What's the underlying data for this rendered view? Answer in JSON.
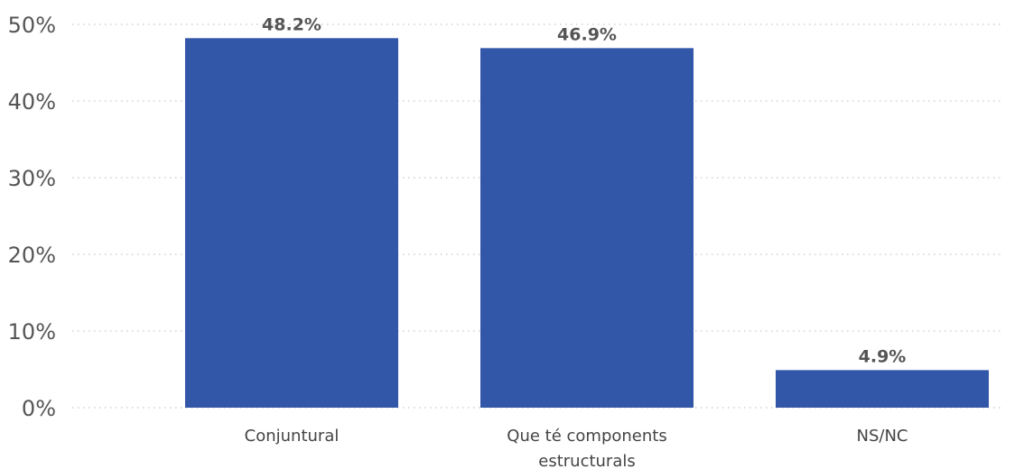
{
  "chart_data": {
    "type": "bar",
    "title": "",
    "xlabel": "",
    "ylabel": "",
    "categories": [
      "Conjuntural",
      "Que té components estructurals",
      "NS/NC"
    ],
    "values": [
      48.2,
      46.9,
      4.9
    ],
    "value_labels": [
      "48.2%",
      "46.9%",
      "4.9%"
    ],
    "ylim": [
      0,
      50
    ],
    "yticks": [
      0,
      10,
      20,
      30,
      40,
      50
    ],
    "ytick_labels": [
      "0%",
      "10%",
      "20%",
      "30%",
      "40%",
      "50%"
    ],
    "grid": true,
    "grid_style": "dotted",
    "legend": "none",
    "colors": {
      "bar": "#3256A8",
      "grid": "#C8C8C8",
      "axis_text": "#555555",
      "category_text": "#444444",
      "value_label": "#555555"
    }
  }
}
